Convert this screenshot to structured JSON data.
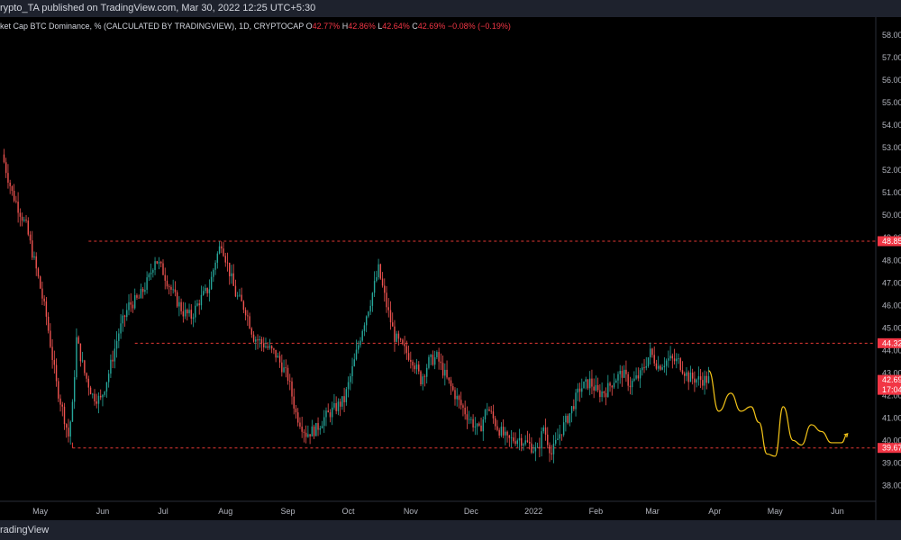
{
  "header": {
    "publisher_text": "rypto_TA published on TradingView.com, Mar 30, 2022 12:25 UTC+5:30"
  },
  "info": {
    "symbol_text": "ket Cap BTC Dominance, % (CALCULATED BY TRADINGVIEW), 1D, CRYPTOCAP",
    "o_label": "O",
    "o_value": "42.77%",
    "h_label": "H",
    "h_value": "42.86%",
    "l_label": "L",
    "l_value": "42.64%",
    "c_label": "C",
    "c_value": "42.69%",
    "change": "−0.08% (−0.19%)"
  },
  "footer": {
    "brand": "radingView"
  },
  "colors": {
    "up": "#26a69a",
    "down": "#ef5350",
    "level": "#e53935",
    "projection": "#f5c518",
    "tag": "#f23645"
  },
  "chart_data": {
    "type": "candlestick",
    "title": "",
    "ylim": [
      37.3,
      58.8
    ],
    "y_ticks": [
      "58.00",
      "57.00",
      "56.00",
      "55.00",
      "54.00",
      "53.00",
      "52.00",
      "51.00",
      "50.00",
      "49.00",
      "48.00",
      "47.00",
      "46.00",
      "45.00",
      "44.00",
      "43.00",
      "42.00",
      "41.00",
      "40.00",
      "39.00",
      "38.00"
    ],
    "x_ticks": [
      {
        "label": "May",
        "date": "2021-05-01"
      },
      {
        "label": "Jun",
        "date": "2021-06-01"
      },
      {
        "label": "Jul",
        "date": "2021-07-01"
      },
      {
        "label": "Aug",
        "date": "2021-08-01"
      },
      {
        "label": "Sep",
        "date": "2021-09-01"
      },
      {
        "label": "Oct",
        "date": "2021-10-01"
      },
      {
        "label": "Nov",
        "date": "2021-11-01"
      },
      {
        "label": "Dec",
        "date": "2021-12-01"
      },
      {
        "label": "2022",
        "date": "2022-01-01"
      },
      {
        "label": "Feb",
        "date": "2022-02-01"
      },
      {
        "label": "Mar",
        "date": "2022-03-01"
      },
      {
        "label": "Apr",
        "date": "2022-04-01"
      },
      {
        "label": "May",
        "date": "2022-05-01"
      },
      {
        "label": "Jun",
        "date": "2022-06-01"
      }
    ],
    "x_range": [
      "2021-04-11",
      "2022-06-20"
    ],
    "path_points": [
      [
        "2021-04-13",
        52.7
      ],
      [
        "2021-04-18",
        51.0
      ],
      [
        "2021-04-25",
        49.5
      ],
      [
        "2021-05-01",
        47.2
      ],
      [
        "2021-05-05",
        45.5
      ],
      [
        "2021-05-10",
        42.5
      ],
      [
        "2021-05-14",
        41.0
      ],
      [
        "2021-05-16",
        40.2
      ],
      [
        "2021-05-18",
        41.5
      ],
      [
        "2021-05-20",
        44.5
      ],
      [
        "2021-05-24",
        43.0
      ],
      [
        "2021-05-28",
        42.0
      ],
      [
        "2021-06-01",
        41.8
      ],
      [
        "2021-06-05",
        43.0
      ],
      [
        "2021-06-10",
        44.8
      ],
      [
        "2021-06-15",
        46.0
      ],
      [
        "2021-06-20",
        46.3
      ],
      [
        "2021-06-25",
        47.2
      ],
      [
        "2021-06-28",
        48.1
      ],
      [
        "2021-07-02",
        47.5
      ],
      [
        "2021-07-07",
        46.5
      ],
      [
        "2021-07-12",
        45.7
      ],
      [
        "2021-07-16",
        45.5
      ],
      [
        "2021-07-20",
        46.2
      ],
      [
        "2021-07-25",
        46.8
      ],
      [
        "2021-07-28",
        48.0
      ],
      [
        "2021-07-31",
        48.8
      ],
      [
        "2021-08-03",
        47.8
      ],
      [
        "2021-08-07",
        46.5
      ],
      [
        "2021-08-12",
        45.8
      ],
      [
        "2021-08-16",
        44.6
      ],
      [
        "2021-08-22",
        44.2
      ],
      [
        "2021-08-27",
        43.8
      ],
      [
        "2021-09-02",
        42.8
      ],
      [
        "2021-09-06",
        41.2
      ],
      [
        "2021-09-11",
        40.3
      ],
      [
        "2021-09-16",
        40.5
      ],
      [
        "2021-09-20",
        41.0
      ],
      [
        "2021-09-25",
        41.4
      ],
      [
        "2021-09-30",
        41.8
      ],
      [
        "2021-10-05",
        43.5
      ],
      [
        "2021-10-09",
        45.0
      ],
      [
        "2021-10-13",
        46.2
      ],
      [
        "2021-10-17",
        47.6
      ],
      [
        "2021-10-21",
        46.0
      ],
      [
        "2021-10-25",
        44.6
      ],
      [
        "2021-10-30",
        44.0
      ],
      [
        "2021-11-03",
        43.6
      ],
      [
        "2021-11-07",
        42.7
      ],
      [
        "2021-11-11",
        43.5
      ],
      [
        "2021-11-15",
        43.7
      ],
      [
        "2021-11-20",
        42.7
      ],
      [
        "2021-11-26",
        41.7
      ],
      [
        "2021-12-01",
        41.0
      ],
      [
        "2021-12-06",
        40.4
      ],
      [
        "2021-12-10",
        41.5
      ],
      [
        "2021-12-15",
        40.6
      ],
      [
        "2021-12-20",
        40.0
      ],
      [
        "2021-12-26",
        40.1
      ],
      [
        "2021-12-31",
        39.8
      ],
      [
        "2022-01-04",
        39.5
      ],
      [
        "2022-01-07",
        40.6
      ],
      [
        "2022-01-11",
        39.4
      ],
      [
        "2022-01-15",
        40.3
      ],
      [
        "2022-01-20",
        41.2
      ],
      [
        "2022-01-25",
        42.3
      ],
      [
        "2022-01-30",
        42.6
      ],
      [
        "2022-02-03",
        42.1
      ],
      [
        "2022-02-07",
        42.2
      ],
      [
        "2022-02-11",
        42.7
      ],
      [
        "2022-02-15",
        43.0
      ],
      [
        "2022-02-19",
        42.5
      ],
      [
        "2022-02-24",
        42.9
      ],
      [
        "2022-03-01",
        43.9
      ],
      [
        "2022-03-05",
        43.3
      ],
      [
        "2022-03-10",
        43.6
      ],
      [
        "2022-03-15",
        43.5
      ],
      [
        "2022-03-20",
        42.8
      ],
      [
        "2022-03-25",
        42.7
      ],
      [
        "2022-03-29",
        42.7
      ]
    ],
    "levels": [
      {
        "value": 48.85,
        "label": "48.85"
      },
      {
        "value": 44.32,
        "label": "44.32"
      },
      {
        "value": 39.67,
        "label": "39.67"
      }
    ],
    "last": {
      "value": 42.69,
      "label": "42.69",
      "countdown": "17:04"
    },
    "projection": [
      [
        "2022-03-29",
        43.1
      ],
      [
        "2022-04-03",
        41.3
      ],
      [
        "2022-04-09",
        42.1
      ],
      [
        "2022-04-14",
        41.3
      ],
      [
        "2022-04-19",
        41.5
      ],
      [
        "2022-04-23",
        40.8
      ],
      [
        "2022-04-27",
        39.4
      ],
      [
        "2022-05-01",
        39.3
      ],
      [
        "2022-05-05",
        41.5
      ],
      [
        "2022-05-10",
        40.0
      ],
      [
        "2022-05-14",
        39.8
      ],
      [
        "2022-05-19",
        40.7
      ],
      [
        "2022-05-24",
        40.4
      ],
      [
        "2022-05-29",
        39.9
      ],
      [
        "2022-06-03",
        39.9
      ],
      [
        "2022-06-06",
        40.3
      ]
    ]
  }
}
